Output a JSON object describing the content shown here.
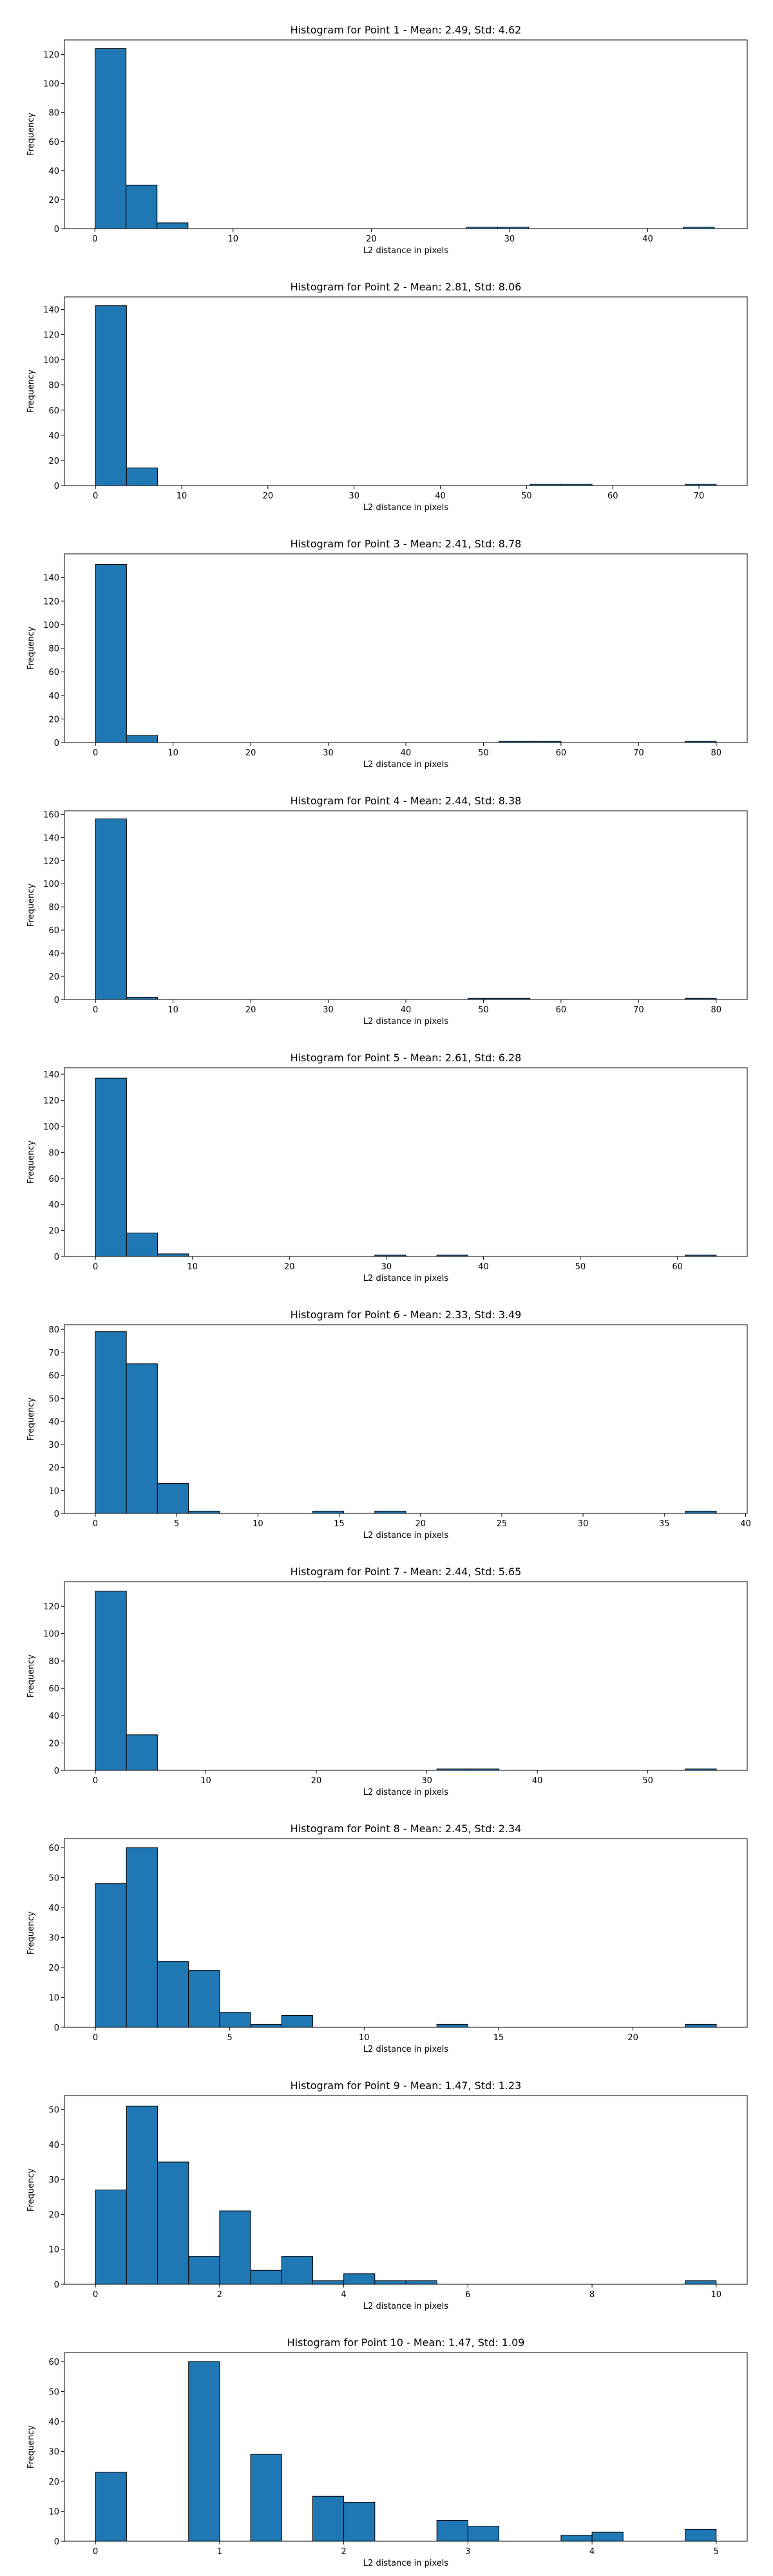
{
  "chart_data": [
    {
      "type": "bar",
      "title": "Histogram for Point 1 - Mean: 2.49, Std: 4.62",
      "xlabel": "L2 distance in pixels",
      "ylabel": "Frequency",
      "xlim": [
        -2.2,
        47.2
      ],
      "ylim": [
        0,
        130
      ],
      "xticks": [
        0,
        10,
        20,
        30,
        40
      ],
      "yticks": [
        0,
        20,
        40,
        60,
        80,
        100,
        120
      ],
      "bins": {
        "start": 0.02,
        "width": 2.24,
        "counts": [
          124,
          30,
          4,
          0,
          0,
          0,
          0,
          0,
          0,
          0,
          0,
          0,
          1,
          1,
          0,
          0,
          0,
          0,
          0,
          1
        ]
      },
      "color": "#1f77b4"
    },
    {
      "type": "bar",
      "title": "Histogram for Point 2 - Mean: 2.81, Std: 8.06",
      "xlabel": "L2 distance in pixels",
      "ylabel": "Frequency",
      "xlim": [
        -3.6,
        75.6
      ],
      "ylim": [
        0,
        150
      ],
      "xticks": [
        0,
        10,
        20,
        30,
        40,
        50,
        60,
        70
      ],
      "yticks": [
        0,
        20,
        40,
        60,
        80,
        100,
        120,
        140
      ],
      "bins": {
        "start": 0.0,
        "width": 3.6,
        "counts": [
          143,
          14,
          0,
          0,
          0,
          0,
          0,
          0,
          0,
          0,
          0,
          0,
          0,
          0,
          1,
          1,
          0,
          0,
          0,
          1
        ]
      },
      "color": "#1f77b4"
    },
    {
      "type": "bar",
      "title": "Histogram for Point 3 - Mean: 2.41, Std: 8.78",
      "xlabel": "L2 distance in pixels",
      "ylabel": "Frequency",
      "xlim": [
        -4.0,
        84.0
      ],
      "ylim": [
        0,
        160
      ],
      "xticks": [
        0,
        10,
        20,
        30,
        40,
        50,
        60,
        70,
        80
      ],
      "yticks": [
        0,
        20,
        40,
        60,
        80,
        100,
        120,
        140
      ],
      "bins": {
        "start": 0.0,
        "width": 4.0,
        "counts": [
          151,
          6,
          0,
          0,
          0,
          0,
          0,
          0,
          0,
          0,
          0,
          0,
          0,
          1,
          1,
          0,
          0,
          0,
          0,
          1
        ]
      },
      "color": "#1f77b4"
    },
    {
      "type": "bar",
      "title": "Histogram for Point 4 - Mean: 2.44, Std: 8.38",
      "xlabel": "L2 distance in pixels",
      "ylabel": "Frequency",
      "xlim": [
        -4.0,
        84.0
      ],
      "ylim": [
        0,
        163
      ],
      "xticks": [
        0,
        10,
        20,
        30,
        40,
        50,
        60,
        70,
        80
      ],
      "yticks": [
        0,
        20,
        40,
        60,
        80,
        100,
        120,
        140,
        160
      ],
      "bins": {
        "start": 0.0,
        "width": 4.0,
        "counts": [
          156,
          2,
          0,
          0,
          0,
          0,
          0,
          0,
          0,
          0,
          0,
          0,
          1,
          1,
          0,
          0,
          0,
          0,
          0,
          1
        ]
      },
      "color": "#1f77b4"
    },
    {
      "type": "bar",
      "title": "Histogram for Point 5 - Mean: 2.61, Std: 6.28",
      "xlabel": "L2 distance in pixels",
      "ylabel": "Frequency",
      "xlim": [
        -3.2,
        67.2
      ],
      "ylim": [
        0,
        145
      ],
      "xticks": [
        0,
        10,
        20,
        30,
        40,
        50,
        60
      ],
      "yticks": [
        0,
        20,
        40,
        60,
        80,
        100,
        120,
        140
      ],
      "bins": {
        "start": 0.0,
        "width": 3.2,
        "counts": [
          137,
          18,
          2,
          0,
          0,
          0,
          0,
          0,
          0,
          1,
          0,
          1,
          0,
          0,
          0,
          0,
          0,
          0,
          0,
          1
        ]
      },
      "color": "#1f77b4"
    },
    {
      "type": "bar",
      "title": "Histogram for Point 6 - Mean: 2.33, Std: 3.49",
      "xlabel": "L2 distance in pixels",
      "ylabel": "Frequency",
      "xlim": [
        -1.9,
        40.1
      ],
      "ylim": [
        0,
        82
      ],
      "xticks": [
        0,
        5,
        10,
        15,
        20,
        25,
        30,
        35,
        40
      ],
      "yticks": [
        0,
        10,
        20,
        30,
        40,
        50,
        60,
        70,
        80
      ],
      "bins": {
        "start": 0.0,
        "width": 1.91,
        "counts": [
          79,
          65,
          13,
          1,
          0,
          0,
          0,
          1,
          0,
          1,
          0,
          0,
          0,
          0,
          0,
          0,
          0,
          0,
          0,
          1
        ]
      },
      "color": "#1f77b4"
    },
    {
      "type": "bar",
      "title": "Histogram for Point 7 - Mean: 2.44, Std: 5.65",
      "xlabel": "L2 distance in pixels",
      "ylabel": "Frequency",
      "xlim": [
        -2.8,
        59.0
      ],
      "ylim": [
        0,
        138
      ],
      "xticks": [
        0,
        10,
        20,
        30,
        40,
        50
      ],
      "yticks": [
        0,
        20,
        40,
        60,
        80,
        100,
        120
      ],
      "bins": {
        "start": 0.0,
        "width": 2.81,
        "counts": [
          131,
          26,
          0,
          0,
          0,
          0,
          0,
          0,
          0,
          0,
          0,
          1,
          1,
          0,
          0,
          0,
          0,
          0,
          0,
          1
        ]
      },
      "color": "#1f77b4"
    },
    {
      "type": "bar",
      "title": "Histogram for Point 8 - Mean: 2.45, Std: 2.34",
      "xlabel": "L2 distance in pixels",
      "ylabel": "Frequency",
      "xlim": [
        -1.15,
        24.25
      ],
      "ylim": [
        0,
        63
      ],
      "xticks": [
        0,
        5,
        10,
        15,
        20
      ],
      "yticks": [
        0,
        10,
        20,
        30,
        40,
        50,
        60
      ],
      "bins": {
        "start": 0.0,
        "width": 1.155,
        "counts": [
          48,
          60,
          22,
          19,
          5,
          1,
          4,
          0,
          0,
          0,
          0,
          1,
          0,
          0,
          0,
          0,
          0,
          0,
          0,
          1
        ]
      },
      "color": "#1f77b4"
    },
    {
      "type": "bar",
      "title": "Histogram for Point 9 - Mean: 1.47, Std: 1.23",
      "xlabel": "L2 distance in pixels",
      "ylabel": "Frequency",
      "xlim": [
        -0.5,
        10.5
      ],
      "ylim": [
        0,
        54
      ],
      "xticks": [
        0,
        2,
        4,
        6,
        8,
        10
      ],
      "yticks": [
        0,
        10,
        20,
        30,
        40,
        50
      ],
      "bins": {
        "start": 0.0,
        "width": 0.5,
        "counts": [
          27,
          51,
          35,
          8,
          21,
          4,
          8,
          1,
          3,
          1,
          1,
          0,
          0,
          0,
          0,
          0,
          0,
          0,
          0,
          1
        ]
      },
      "color": "#1f77b4"
    },
    {
      "type": "bar",
      "title": "Histogram for Point 10 - Mean: 1.47, Std: 1.09",
      "xlabel": "L2 distance in pixels",
      "ylabel": "Frequency",
      "xlim": [
        -0.25,
        5.25
      ],
      "ylim": [
        0,
        63
      ],
      "xticks": [
        0,
        1,
        2,
        3,
        4,
        5
      ],
      "yticks": [
        0,
        10,
        20,
        30,
        40,
        50,
        60
      ],
      "bins": {
        "start": 0.0,
        "width": 0.25,
        "counts": [
          23,
          0,
          0,
          60,
          0,
          29,
          0,
          15,
          13,
          0,
          0,
          7,
          5,
          0,
          0,
          2,
          3,
          0,
          0,
          4
        ]
      },
      "color": "#1f77b4"
    }
  ]
}
